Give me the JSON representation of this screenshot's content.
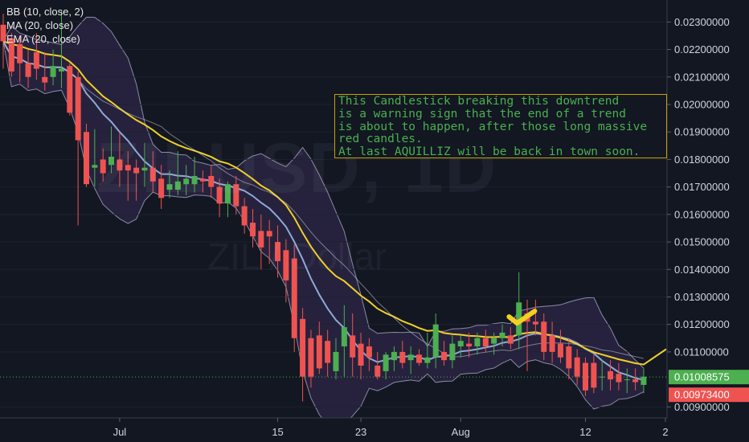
{
  "legend": {
    "bb": "BB (10, close, 2)",
    "ma": "MA (20, close)",
    "ema": "EMA (20, close)"
  },
  "watermark": {
    "ticker": "ZILUSD, 1D",
    "name": "ZIL / Dollar"
  },
  "note": {
    "lines": [
      "This Candlestick breaking this downtrend",
      "is a warning sign that the end of a trend",
      "is about to happen, after those long massive",
      "red candles.",
      "At last AQUILLIZ will be back in town soon."
    ]
  },
  "colors": {
    "background": "#131722",
    "up_candle": "#4caf50",
    "down_candle": "#ef5350",
    "band_fill": "#2a2542",
    "band_line": "#8a8aa8",
    "ma_line": "#8fa8d6",
    "ema_line": "#f0d028",
    "checkmark": "#f5d020",
    "note_border": "#c8a200",
    "note_text": "#4caf50"
  },
  "chart_data": {
    "type": "candlestick",
    "x_tick_labels": [
      "Jul",
      "15",
      "23",
      "Aug",
      "12",
      "2"
    ],
    "y_ticks": [
      "0.02300000",
      "0.02200000",
      "0.02100000",
      "0.02000000",
      "0.01900000",
      "0.01800000",
      "0.01700000",
      "0.01600000",
      "0.01500000",
      "0.01400000",
      "0.01300000",
      "0.01200000",
      "0.01100000",
      "0.00900000"
    ],
    "ylim": [
      0.0086,
      0.0238
    ],
    "price_labels": [
      {
        "text": "0.01008575",
        "value": 0.01008575,
        "color": "#4caf50"
      },
      {
        "text": "0.00973400",
        "value": 0.009734,
        "color": "#ef5350"
      }
    ],
    "candles": [
      {
        "o": 0.0229,
        "h": 0.0233,
        "l": 0.0213,
        "c": 0.0223
      },
      {
        "o": 0.0224,
        "h": 0.0226,
        "l": 0.021,
        "c": 0.0212
      },
      {
        "o": 0.0222,
        "h": 0.0225,
        "l": 0.0208,
        "c": 0.0215
      },
      {
        "o": 0.0215,
        "h": 0.022,
        "l": 0.0206,
        "c": 0.021
      },
      {
        "o": 0.0219,
        "h": 0.0226,
        "l": 0.0209,
        "c": 0.0213
      },
      {
        "o": 0.021,
        "h": 0.0219,
        "l": 0.0205,
        "c": 0.0208
      },
      {
        "o": 0.021,
        "h": 0.022,
        "l": 0.0207,
        "c": 0.0214
      },
      {
        "o": 0.0212,
        "h": 0.0234,
        "l": 0.0206,
        "c": 0.0213
      },
      {
        "o": 0.0214,
        "h": 0.0215,
        "l": 0.0196,
        "c": 0.0197
      },
      {
        "o": 0.021,
        "h": 0.0212,
        "l": 0.0156,
        "c": 0.0187
      },
      {
        "o": 0.019,
        "h": 0.0193,
        "l": 0.017,
        "c": 0.0171
      },
      {
        "o": 0.0177,
        "h": 0.0191,
        "l": 0.017,
        "c": 0.0178
      },
      {
        "o": 0.018,
        "h": 0.0184,
        "l": 0.0172,
        "c": 0.0175
      },
      {
        "o": 0.0178,
        "h": 0.0192,
        "l": 0.0175,
        "c": 0.0181
      },
      {
        "o": 0.018,
        "h": 0.019,
        "l": 0.017,
        "c": 0.0176
      },
      {
        "o": 0.0178,
        "h": 0.0183,
        "l": 0.0165,
        "c": 0.0176
      },
      {
        "o": 0.0177,
        "h": 0.018,
        "l": 0.0165,
        "c": 0.0175
      },
      {
        "o": 0.0176,
        "h": 0.0186,
        "l": 0.017,
        "c": 0.0177
      },
      {
        "o": 0.0177,
        "h": 0.0183,
        "l": 0.0168,
        "c": 0.0172
      },
      {
        "o": 0.0173,
        "h": 0.0178,
        "l": 0.0162,
        "c": 0.0166
      },
      {
        "o": 0.0169,
        "h": 0.0176,
        "l": 0.0166,
        "c": 0.0171
      },
      {
        "o": 0.0169,
        "h": 0.0183,
        "l": 0.0167,
        "c": 0.0172
      },
      {
        "o": 0.0171,
        "h": 0.0178,
        "l": 0.0167,
        "c": 0.0173
      },
      {
        "o": 0.0171,
        "h": 0.0181,
        "l": 0.0168,
        "c": 0.0174
      },
      {
        "o": 0.0173,
        "h": 0.0176,
        "l": 0.0168,
        "c": 0.0172
      },
      {
        "o": 0.0174,
        "h": 0.0178,
        "l": 0.0166,
        "c": 0.017
      },
      {
        "o": 0.017,
        "h": 0.0173,
        "l": 0.0159,
        "c": 0.0164
      },
      {
        "o": 0.0164,
        "h": 0.0172,
        "l": 0.0159,
        "c": 0.0171
      },
      {
        "o": 0.0171,
        "h": 0.0174,
        "l": 0.016,
        "c": 0.0163
      },
      {
        "o": 0.0163,
        "h": 0.0166,
        "l": 0.0153,
        "c": 0.0156
      },
      {
        "o": 0.0157,
        "h": 0.0162,
        "l": 0.0148,
        "c": 0.0152
      },
      {
        "o": 0.0154,
        "h": 0.016,
        "l": 0.014,
        "c": 0.0148
      },
      {
        "o": 0.0154,
        "h": 0.0158,
        "l": 0.0142,
        "c": 0.0152
      },
      {
        "o": 0.015,
        "h": 0.0156,
        "l": 0.0137,
        "c": 0.0143
      },
      {
        "o": 0.0147,
        "h": 0.0151,
        "l": 0.0128,
        "c": 0.0136
      },
      {
        "o": 0.0144,
        "h": 0.0149,
        "l": 0.011,
        "c": 0.0115
      },
      {
        "o": 0.0122,
        "h": 0.0126,
        "l": 0.0092,
        "c": 0.0101
      },
      {
        "o": 0.0115,
        "h": 0.0118,
        "l": 0.0097,
        "c": 0.0101
      },
      {
        "o": 0.0116,
        "h": 0.0121,
        "l": 0.0102,
        "c": 0.0104
      },
      {
        "o": 0.0114,
        "h": 0.0118,
        "l": 0.0101,
        "c": 0.0106
      },
      {
        "o": 0.0103,
        "h": 0.0115,
        "l": 0.01,
        "c": 0.011
      },
      {
        "o": 0.0112,
        "h": 0.0127,
        "l": 0.0101,
        "c": 0.0119
      },
      {
        "o": 0.0116,
        "h": 0.0124,
        "l": 0.0101,
        "c": 0.0108
      },
      {
        "o": 0.0113,
        "h": 0.0117,
        "l": 0.01,
        "c": 0.0105
      },
      {
        "o": 0.0112,
        "h": 0.0115,
        "l": 0.0103,
        "c": 0.0108
      },
      {
        "o": 0.0105,
        "h": 0.011,
        "l": 0.01,
        "c": 0.0101
      },
      {
        "o": 0.0103,
        "h": 0.011,
        "l": 0.01,
        "c": 0.0109
      },
      {
        "o": 0.0107,
        "h": 0.0112,
        "l": 0.0103,
        "c": 0.011
      },
      {
        "o": 0.011,
        "h": 0.0114,
        "l": 0.0104,
        "c": 0.0106
      },
      {
        "o": 0.0107,
        "h": 0.0112,
        "l": 0.0102,
        "c": 0.0109
      },
      {
        "o": 0.0109,
        "h": 0.0111,
        "l": 0.0105,
        "c": 0.0106
      },
      {
        "o": 0.0106,
        "h": 0.0117,
        "l": 0.0104,
        "c": 0.0108
      },
      {
        "o": 0.0108,
        "h": 0.0124,
        "l": 0.0104,
        "c": 0.012
      },
      {
        "o": 0.011,
        "h": 0.0114,
        "l": 0.0105,
        "c": 0.0107
      },
      {
        "o": 0.0107,
        "h": 0.0116,
        "l": 0.0104,
        "c": 0.0113
      },
      {
        "o": 0.0112,
        "h": 0.0116,
        "l": 0.0108,
        "c": 0.0114
      },
      {
        "o": 0.0113,
        "h": 0.0117,
        "l": 0.0108,
        "c": 0.0112
      },
      {
        "o": 0.0112,
        "h": 0.0117,
        "l": 0.0109,
        "c": 0.0115
      },
      {
        "o": 0.0115,
        "h": 0.0118,
        "l": 0.011,
        "c": 0.0112
      },
      {
        "o": 0.0113,
        "h": 0.0117,
        "l": 0.0109,
        "c": 0.0115
      },
      {
        "o": 0.0115,
        "h": 0.012,
        "l": 0.0112,
        "c": 0.0117
      },
      {
        "o": 0.0116,
        "h": 0.0119,
        "l": 0.0111,
        "c": 0.0113
      },
      {
        "o": 0.0116,
        "h": 0.0139,
        "l": 0.0111,
        "c": 0.0128
      },
      {
        "o": 0.0124,
        "h": 0.0129,
        "l": 0.0103,
        "c": 0.0121
      },
      {
        "o": 0.0121,
        "h": 0.0129,
        "l": 0.0116,
        "c": 0.012
      },
      {
        "o": 0.0121,
        "h": 0.0124,
        "l": 0.0107,
        "c": 0.011
      },
      {
        "o": 0.0116,
        "h": 0.0121,
        "l": 0.0106,
        "c": 0.011
      },
      {
        "o": 0.0113,
        "h": 0.0118,
        "l": 0.0106,
        "c": 0.0108
      },
      {
        "o": 0.0112,
        "h": 0.0115,
        "l": 0.01,
        "c": 0.0104
      },
      {
        "o": 0.0108,
        "h": 0.0111,
        "l": 0.0098,
        "c": 0.0101
      },
      {
        "o": 0.0106,
        "h": 0.0108,
        "l": 0.0094,
        "c": 0.0096
      },
      {
        "o": 0.0106,
        "h": 0.0109,
        "l": 0.0095,
        "c": 0.0097
      },
      {
        "o": 0.0101,
        "h": 0.0107,
        "l": 0.0096,
        "c": 0.0101
      },
      {
        "o": 0.0103,
        "h": 0.0107,
        "l": 0.0096,
        "c": 0.01
      },
      {
        "o": 0.0102,
        "h": 0.0106,
        "l": 0.0096,
        "c": 0.0099
      },
      {
        "o": 0.01,
        "h": 0.0104,
        "l": 0.0095,
        "c": 0.01
      },
      {
        "o": 0.01,
        "h": 0.0104,
        "l": 0.0096,
        "c": 0.0099
      },
      {
        "o": 0.0098,
        "h": 0.0104,
        "l": 0.0095,
        "c": 0.0101
      }
    ]
  }
}
